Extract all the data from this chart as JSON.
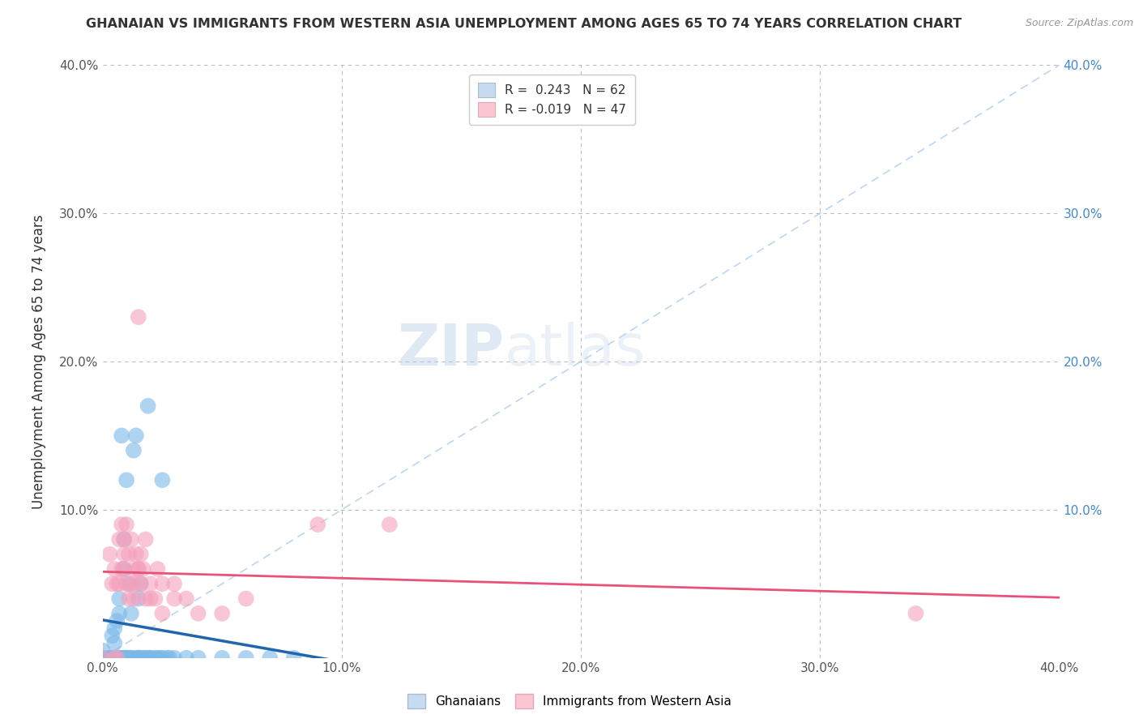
{
  "title": "GHANAIAN VS IMMIGRANTS FROM WESTERN ASIA UNEMPLOYMENT AMONG AGES 65 TO 74 YEARS CORRELATION CHART",
  "source_text": "Source: ZipAtlas.com",
  "ylabel": "Unemployment Among Ages 65 to 74 years",
  "xlim": [
    0.0,
    0.4
  ],
  "ylim": [
    0.0,
    0.4
  ],
  "xtick_labels": [
    "0.0%",
    "10.0%",
    "20.0%",
    "30.0%",
    "40.0%"
  ],
  "xtick_vals": [
    0.0,
    0.1,
    0.2,
    0.3,
    0.4
  ],
  "ytick_labels": [
    "",
    "10.0%",
    "20.0%",
    "30.0%",
    "40.0%"
  ],
  "ytick_vals": [
    0.0,
    0.1,
    0.2,
    0.3,
    0.4
  ],
  "right_ytick_labels": [
    "",
    "10.0%",
    "20.0%",
    "30.0%",
    "40.0%"
  ],
  "blue_R": 0.243,
  "blue_N": 62,
  "pink_R": -0.019,
  "pink_N": 47,
  "blue_color": "#7bb8e8",
  "pink_color": "#f4a0bc",
  "blue_legend_color": "#c6dbef",
  "pink_legend_color": "#fcc5d2",
  "blue_line_color": "#2166ac",
  "pink_line_color": "#e8527a",
  "watermark_zip": "ZIP",
  "watermark_atlas": "atlas",
  "legend_label_blue": "Ghanaians",
  "legend_label_pink": "Immigrants from Western Asia",
  "blue_scatter": [
    [
      0.0,
      0.0
    ],
    [
      0.0,
      0.0
    ],
    [
      0.0,
      0.0
    ],
    [
      0.0,
      0.005
    ],
    [
      0.003,
      0.0
    ],
    [
      0.003,
      0.0
    ],
    [
      0.004,
      0.0
    ],
    [
      0.004,
      0.015
    ],
    [
      0.005,
      0.0
    ],
    [
      0.005,
      0.01
    ],
    [
      0.005,
      0.02
    ],
    [
      0.006,
      0.0
    ],
    [
      0.006,
      0.0
    ],
    [
      0.006,
      0.025
    ],
    [
      0.007,
      0.0
    ],
    [
      0.007,
      0.0
    ],
    [
      0.007,
      0.03
    ],
    [
      0.007,
      0.04
    ],
    [
      0.008,
      0.0
    ],
    [
      0.008,
      0.0
    ],
    [
      0.008,
      0.15
    ],
    [
      0.009,
      0.0
    ],
    [
      0.009,
      0.06
    ],
    [
      0.009,
      0.08
    ],
    [
      0.01,
      0.0
    ],
    [
      0.01,
      0.0
    ],
    [
      0.01,
      0.0
    ],
    [
      0.01,
      0.12
    ],
    [
      0.011,
      0.0
    ],
    [
      0.011,
      0.05
    ],
    [
      0.012,
      0.0
    ],
    [
      0.012,
      0.0
    ],
    [
      0.012,
      0.03
    ],
    [
      0.013,
      0.14
    ],
    [
      0.014,
      0.0
    ],
    [
      0.014,
      0.15
    ],
    [
      0.015,
      0.0
    ],
    [
      0.015,
      0.0
    ],
    [
      0.015,
      0.0
    ],
    [
      0.015,
      0.04
    ],
    [
      0.016,
      0.0
    ],
    [
      0.016,
      0.05
    ],
    [
      0.017,
      0.0
    ],
    [
      0.018,
      0.0
    ],
    [
      0.019,
      0.0
    ],
    [
      0.019,
      0.17
    ],
    [
      0.02,
      0.0
    ],
    [
      0.02,
      0.0
    ],
    [
      0.022,
      0.0
    ],
    [
      0.023,
      0.0
    ],
    [
      0.024,
      0.0
    ],
    [
      0.025,
      0.0
    ],
    [
      0.025,
      0.12
    ],
    [
      0.027,
      0.0
    ],
    [
      0.028,
      0.0
    ],
    [
      0.03,
      0.0
    ],
    [
      0.035,
      0.0
    ],
    [
      0.04,
      0.0
    ],
    [
      0.05,
      0.0
    ],
    [
      0.06,
      0.0
    ],
    [
      0.07,
      0.0
    ],
    [
      0.08,
      0.0
    ]
  ],
  "pink_scatter": [
    [
      0.0,
      0.0
    ],
    [
      0.003,
      0.07
    ],
    [
      0.004,
      0.05
    ],
    [
      0.005,
      0.0
    ],
    [
      0.005,
      0.06
    ],
    [
      0.006,
      0.0
    ],
    [
      0.006,
      0.05
    ],
    [
      0.007,
      0.05
    ],
    [
      0.007,
      0.08
    ],
    [
      0.008,
      0.06
    ],
    [
      0.008,
      0.09
    ],
    [
      0.009,
      0.06
    ],
    [
      0.009,
      0.07
    ],
    [
      0.009,
      0.08
    ],
    [
      0.01,
      0.05
    ],
    [
      0.01,
      0.09
    ],
    [
      0.011,
      0.04
    ],
    [
      0.011,
      0.07
    ],
    [
      0.012,
      0.05
    ],
    [
      0.012,
      0.08
    ],
    [
      0.013,
      0.04
    ],
    [
      0.013,
      0.06
    ],
    [
      0.014,
      0.05
    ],
    [
      0.014,
      0.07
    ],
    [
      0.015,
      0.06
    ],
    [
      0.015,
      0.06
    ],
    [
      0.015,
      0.23
    ],
    [
      0.016,
      0.05
    ],
    [
      0.016,
      0.07
    ],
    [
      0.017,
      0.06
    ],
    [
      0.018,
      0.04
    ],
    [
      0.018,
      0.08
    ],
    [
      0.02,
      0.04
    ],
    [
      0.02,
      0.05
    ],
    [
      0.022,
      0.04
    ],
    [
      0.023,
      0.06
    ],
    [
      0.025,
      0.03
    ],
    [
      0.025,
      0.05
    ],
    [
      0.03,
      0.04
    ],
    [
      0.03,
      0.05
    ],
    [
      0.035,
      0.04
    ],
    [
      0.04,
      0.03
    ],
    [
      0.05,
      0.03
    ],
    [
      0.06,
      0.04
    ],
    [
      0.09,
      0.09
    ],
    [
      0.12,
      0.09
    ],
    [
      0.34,
      0.03
    ]
  ],
  "background_color": "#ffffff",
  "grid_color": "#bbbbbb"
}
